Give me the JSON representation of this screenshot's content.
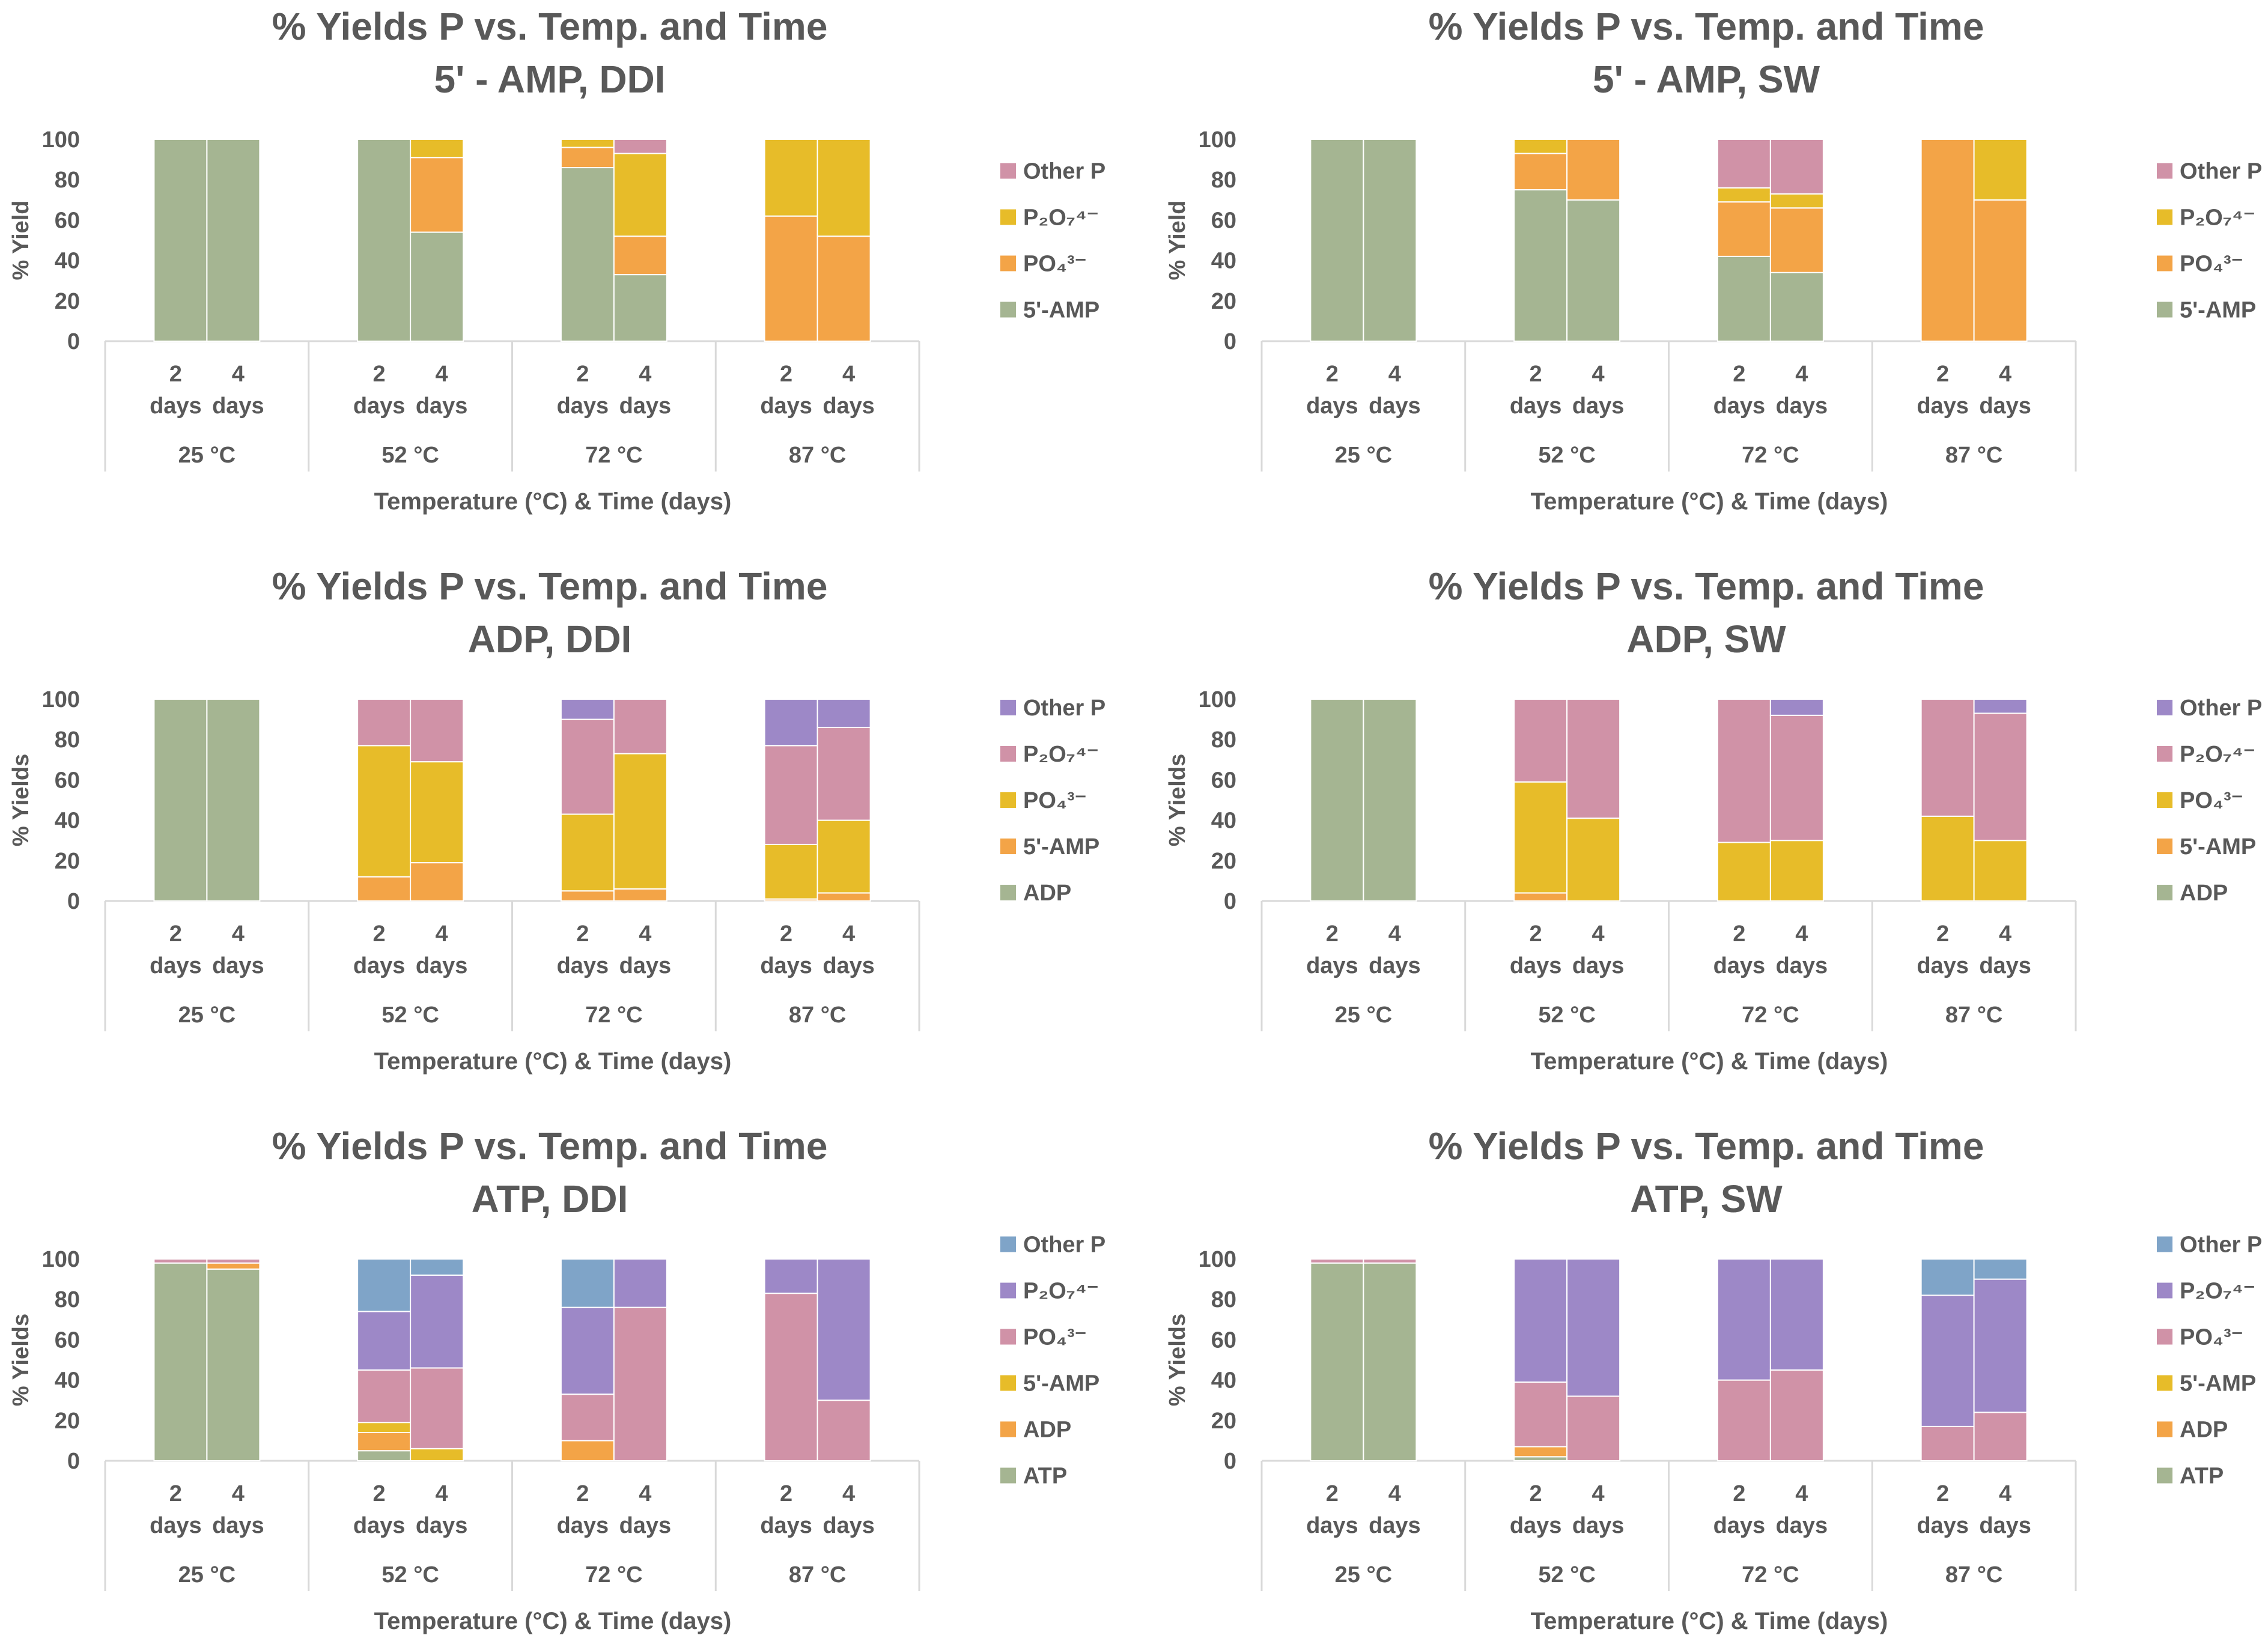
{
  "figure": {
    "chart_data": [
      {
        "type": "bar",
        "stacked": true,
        "title": [
          "% Yields P vs. Temp. and Time",
          "5' - AMP, DDI"
        ],
        "ylabel": "% Yield",
        "xlabel": "Temperature (°C) & Time (days)",
        "ylim": [
          0,
          100
        ],
        "yticks": [
          0,
          20,
          40,
          60,
          80,
          100
        ],
        "groups": [
          "25 °C",
          "52 °C",
          "72 °C",
          "87 °C"
        ],
        "subcategories": [
          [
            "2",
            "days"
          ],
          [
            "4",
            "days"
          ]
        ],
        "legend_position": "right",
        "series": [
          {
            "name": "5'-AMP",
            "color": "#a5b592",
            "values": [
              100,
              100,
              100,
              54,
              86,
              33,
              0,
              0
            ]
          },
          {
            "name": "PO₄³⁻",
            "color": "#f3a447",
            "values": [
              0,
              0,
              0,
              37,
              10,
              19,
              62,
              52
            ]
          },
          {
            "name": "P₂O₇⁴⁻",
            "color": "#e7bc29",
            "values": [
              0,
              0,
              0,
              9,
              4,
              41,
              38,
              48
            ]
          },
          {
            "name": "Other P",
            "color": "#d092a7",
            "values": [
              0,
              0,
              0,
              0,
              0,
              7,
              0,
              0
            ]
          }
        ]
      },
      {
        "type": "bar",
        "stacked": true,
        "title": [
          "% Yields P vs. Temp. and Time",
          "5' - AMP, SW"
        ],
        "ylabel": "% Yield",
        "xlabel": "Temperature (°C) & Time (days)",
        "ylim": [
          0,
          100
        ],
        "yticks": [
          0,
          20,
          40,
          60,
          80,
          100
        ],
        "groups": [
          "25 °C",
          "52 °C",
          "72 °C",
          "87 °C"
        ],
        "subcategories": [
          [
            "2",
            "days"
          ],
          [
            "4",
            "days"
          ]
        ],
        "legend_position": "right",
        "series": [
          {
            "name": "5'-AMP",
            "color": "#a5b592",
            "values": [
              100,
              100,
              75,
              70,
              42,
              34,
              0,
              0
            ]
          },
          {
            "name": "PO₄³⁻",
            "color": "#f3a447",
            "values": [
              0,
              0,
              18,
              30,
              27,
              32,
              100,
              70
            ]
          },
          {
            "name": "P₂O₇⁴⁻",
            "color": "#e7bc29",
            "values": [
              0,
              0,
              7,
              0,
              7,
              7,
              0,
              30
            ]
          },
          {
            "name": "Other P",
            "color": "#d092a7",
            "values": [
              0,
              0,
              0,
              0,
              24,
              27,
              0,
              0
            ]
          }
        ]
      },
      {
        "type": "bar",
        "stacked": true,
        "title": [
          "% Yields P vs. Temp. and Time",
          "ADP, DDI"
        ],
        "ylabel": "% Yields",
        "xlabel": "Temperature (°C) & Time (days)",
        "ylim": [
          0,
          100
        ],
        "yticks": [
          0,
          20,
          40,
          60,
          80,
          100
        ],
        "groups": [
          "25 °C",
          "52 °C",
          "72 °C",
          "87 °C"
        ],
        "subcategories": [
          [
            "2",
            "days"
          ],
          [
            "4",
            "days"
          ]
        ],
        "legend_position": "right",
        "series": [
          {
            "name": "ADP",
            "color": "#a5b592",
            "values": [
              100,
              100,
              0,
              0,
              0,
              0,
              0,
              0
            ]
          },
          {
            "name": "5'-AMP",
            "color": "#f3a447",
            "values": [
              0,
              0,
              12,
              19,
              5,
              6,
              1,
              4
            ]
          },
          {
            "name": "PO₄³⁻",
            "color": "#e7bc29",
            "values": [
              0,
              0,
              65,
              50,
              38,
              67,
              27,
              36
            ]
          },
          {
            "name": "P₂O₇⁴⁻",
            "color": "#d092a7",
            "values": [
              0,
              0,
              23,
              31,
              47,
              27,
              49,
              46
            ]
          },
          {
            "name": "Other P",
            "color": "#9d88c7",
            "values": [
              0,
              0,
              0,
              0,
              10,
              0,
              23,
              14
            ]
          }
        ]
      },
      {
        "type": "bar",
        "stacked": true,
        "title": [
          "% Yields P vs. Temp. and Time",
          "ADP, SW"
        ],
        "ylabel": "% Yields",
        "xlabel": "Temperature (°C) & Time (days)",
        "ylim": [
          0,
          100
        ],
        "yticks": [
          0,
          20,
          40,
          60,
          80,
          100
        ],
        "groups": [
          "25 °C",
          "52 °C",
          "72 °C",
          "87 °C"
        ],
        "subcategories": [
          [
            "2",
            "days"
          ],
          [
            "4",
            "days"
          ]
        ],
        "legend_position": "right",
        "series": [
          {
            "name": "ADP",
            "color": "#a5b592",
            "values": [
              100,
              100,
              0,
              0,
              0,
              0,
              0,
              0
            ]
          },
          {
            "name": "5'-AMP",
            "color": "#f3a447",
            "values": [
              0,
              0,
              4,
              0,
              0,
              0,
              0,
              0
            ]
          },
          {
            "name": "PO₄³⁻",
            "color": "#e7bc29",
            "values": [
              0,
              0,
              55,
              41,
              29,
              30,
              42,
              30
            ]
          },
          {
            "name": "P₂O₇⁴⁻",
            "color": "#d092a7",
            "values": [
              0,
              0,
              41,
              59,
              71,
              62,
              58,
              63
            ]
          },
          {
            "name": "Other P",
            "color": "#9d88c7",
            "values": [
              0,
              0,
              0,
              0,
              0,
              8,
              0,
              7
            ]
          }
        ]
      },
      {
        "type": "bar",
        "stacked": true,
        "title": [
          "% Yields P vs. Temp. and Time",
          "ATP, DDI"
        ],
        "ylabel": "% Yields",
        "xlabel": "Temperature (°C) & Time (days)",
        "ylim": [
          0,
          100
        ],
        "yticks": [
          0,
          20,
          40,
          60,
          80,
          100
        ],
        "groups": [
          "25 °C",
          "52 °C",
          "72 °C",
          "87 °C"
        ],
        "subcategories": [
          [
            "2",
            "days"
          ],
          [
            "4",
            "days"
          ]
        ],
        "legend_position": "right",
        "series": [
          {
            "name": "ATP",
            "color": "#a5b592",
            "values": [
              98,
              95,
              5,
              0,
              0,
              0,
              0,
              0
            ]
          },
          {
            "name": "ADP",
            "color": "#f3a447",
            "values": [
              0,
              3,
              9,
              0,
              10,
              0,
              0,
              0
            ]
          },
          {
            "name": "5'-AMP",
            "color": "#e7bc29",
            "values": [
              0,
              0,
              5,
              6,
              0,
              0,
              0,
              0
            ]
          },
          {
            "name": "PO₄³⁻",
            "color": "#d092a7",
            "values": [
              2,
              2,
              26,
              40,
              23,
              76,
              83,
              30
            ]
          },
          {
            "name": "P₂O₇⁴⁻",
            "color": "#9d88c7",
            "values": [
              0,
              0,
              29,
              46,
              43,
              24,
              17,
              70
            ]
          },
          {
            "name": "Other P",
            "color": "#7fa4c8",
            "values": [
              0,
              0,
              26,
              8,
              24,
              0,
              0,
              0
            ]
          }
        ]
      },
      {
        "type": "bar",
        "stacked": true,
        "title": [
          "% Yields P vs. Temp. and Time",
          "ATP, SW"
        ],
        "ylabel": "% Yields",
        "xlabel": "Temperature (°C) & Time (days)",
        "ylim": [
          0,
          100
        ],
        "yticks": [
          0,
          20,
          40,
          60,
          80,
          100
        ],
        "groups": [
          "25 °C",
          "52 °C",
          "72 °C",
          "87 °C"
        ],
        "subcategories": [
          [
            "2",
            "days"
          ],
          [
            "4",
            "days"
          ]
        ],
        "legend_position": "right",
        "series": [
          {
            "name": "ATP",
            "color": "#a5b592",
            "values": [
              98,
              98,
              2,
              0,
              0,
              0,
              0,
              0
            ]
          },
          {
            "name": "ADP",
            "color": "#f3a447",
            "values": [
              0,
              0,
              5,
              0,
              0,
              0,
              0,
              0
            ]
          },
          {
            "name": "5'-AMP",
            "color": "#e7bc29",
            "values": [
              0,
              0,
              0,
              0,
              0,
              0,
              0,
              0
            ]
          },
          {
            "name": "PO₄³⁻",
            "color": "#d092a7",
            "values": [
              2,
              2,
              32,
              32,
              40,
              45,
              17,
              24
            ]
          },
          {
            "name": "P₂O₇⁴⁻",
            "color": "#9d88c7",
            "values": [
              0,
              0,
              61,
              68,
              60,
              55,
              65,
              66
            ]
          },
          {
            "name": "Other P",
            "color": "#7fa4c8",
            "values": [
              0,
              0,
              0,
              0,
              0,
              0,
              18,
              10
            ]
          }
        ]
      }
    ]
  }
}
